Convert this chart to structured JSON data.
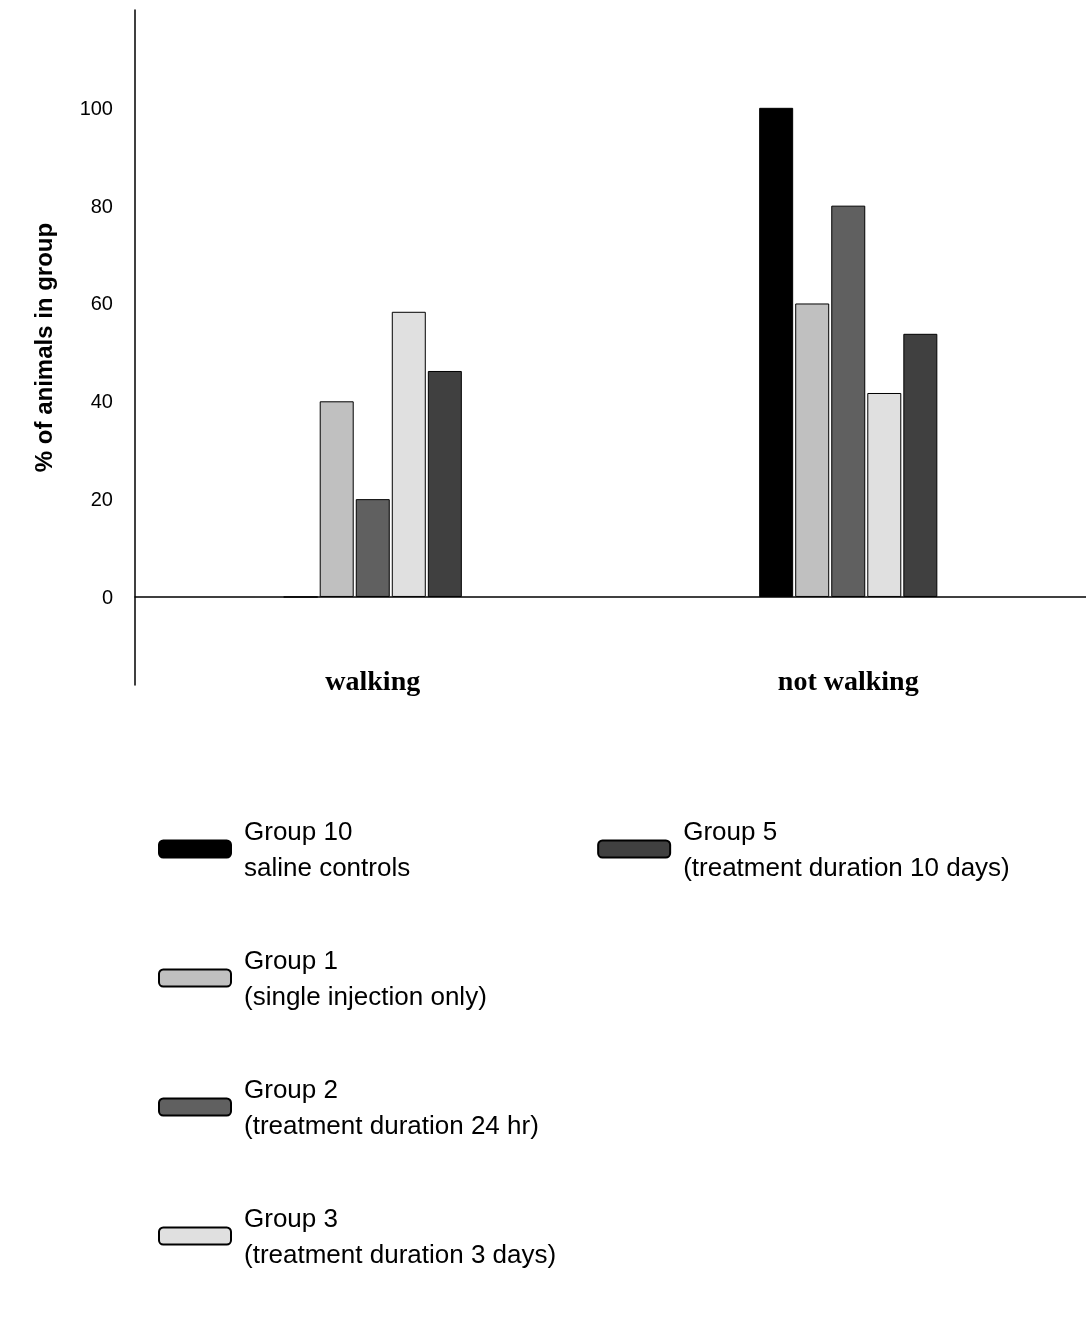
{
  "chart_data": {
    "type": "bar",
    "ylabel": "% of animals in group",
    "categories": [
      "walking",
      "not walking"
    ],
    "series": [
      {
        "name": "Group 10\nsaline controls",
        "color": "#000000",
        "values": [
          0,
          100
        ]
      },
      {
        "name": "Group 1\n(single injection only)",
        "color": "#c0c0c0",
        "values": [
          40,
          60
        ]
      },
      {
        "name": "Group 2\n(treatment duration 24 hr)",
        "color": "#606060",
        "values": [
          20,
          80
        ]
      },
      {
        "name": "Group 3\n(treatment duration 3 days)",
        "color": "#e0e0e0",
        "values": [
          58.3,
          41.7
        ]
      },
      {
        "name": "Group 5\n(treatment duration 10 days)",
        "color": "#404040",
        "values": [
          46.2,
          53.8
        ]
      }
    ],
    "ylim": [
      -18,
      120
    ],
    "yticks": [
      0,
      20,
      40,
      60,
      80,
      100
    ],
    "legend": "bottom left"
  }
}
